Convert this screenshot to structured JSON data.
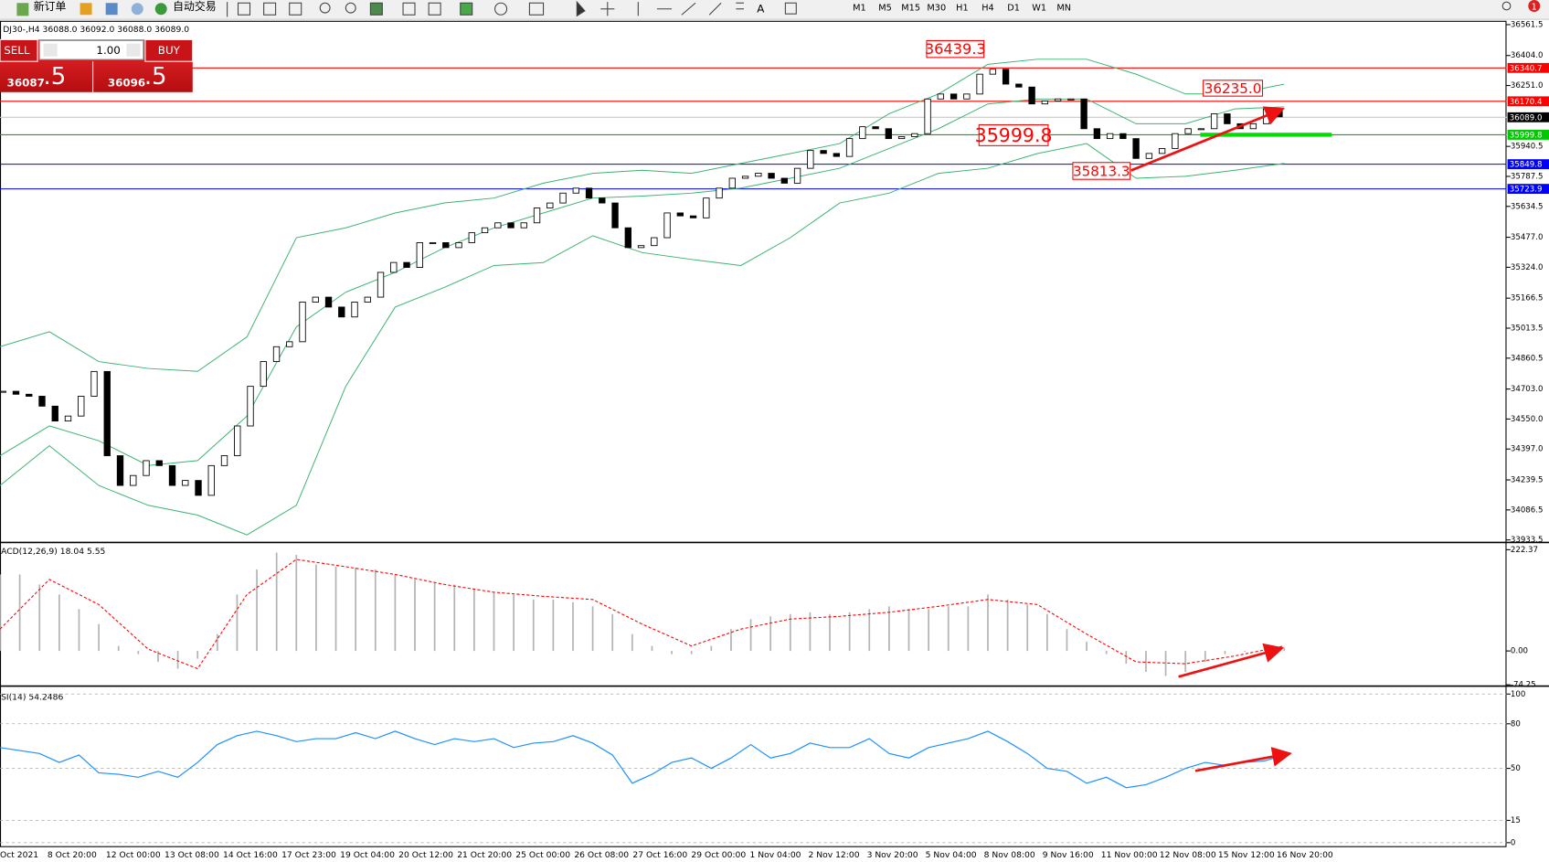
{
  "toolbar": {
    "new_order": "新订单",
    "auto_trading": "自动交易",
    "timeframes": [
      "M1",
      "M5",
      "M15",
      "M30",
      "H1",
      "H4",
      "D1",
      "W1",
      "MN"
    ],
    "badge": "1"
  },
  "trade_panel": {
    "sell_label": "SELL",
    "lot": "1.00",
    "buy_label": "BUY",
    "sell_price": {
      "main": "36087",
      "fraction": ".5"
    },
    "buy_price": {
      "main": "36096",
      "fraction": ".5"
    }
  },
  "time_axis": {
    "labels": [
      "Oct 2021",
      "8 Oct 20:00",
      "12 Oct 00:00",
      "13 Oct 08:00",
      "14 Oct 16:00",
      "17 Oct 23:00",
      "19 Oct 04:00",
      "20 Oct 12:00",
      "21 Oct 20:00",
      "25 Oct 00:00",
      "26 Oct 08:00",
      "27 Oct 16:00",
      "29 Oct 00:00",
      "1 Nov 04:00",
      "2 Nov 12:00",
      "3 Nov 20:00",
      "5 Nov 04:00",
      "8 Nov 08:00",
      "9 Nov 16:00",
      "11 Nov 00:00",
      "12 Nov 08:00",
      "15 Nov 12:00",
      "16 Nov 20:00"
    ]
  },
  "chart_data": [
    {
      "type": "candlestick",
      "title": "DJ30-,H4  36088.0 36092.0 36088.0 36089.0",
      "closes": [
        34691.5,
        34676.4,
        34666.2,
        34615.7,
        34539.9,
        34565.2,
        34666.2,
        34792.6,
        34363.0,
        34211.4,
        34261.9,
        34337.7,
        34312.5,
        34211.4,
        34236.7,
        34160.8,
        34312.5,
        34363.0,
        34514.6,
        34716.8,
        34843.1,
        34918.9,
        34944.2,
        35146.4,
        35171.6,
        35121.1,
        35070.6,
        35146.4,
        35171.6,
        35298.0,
        35348.5,
        35323.3,
        35449.6,
        35449.6,
        35424.3,
        35449.6,
        35500.2,
        35525.4,
        35550.7,
        35525.4,
        35550.7,
        35626.5,
        35651.8,
        35702.3,
        35727.6,
        35677.0,
        35651.8,
        35525.4,
        35424.3,
        35434.5,
        35474.9,
        35601.2,
        35586.1,
        35576.0,
        35677.0,
        35727.6,
        35778.1,
        35788.2,
        35803.4,
        35778.1,
        35752.9,
        35828.7,
        35919.6,
        35904.5,
        35889.3,
        35980.3,
        36040.9,
        36030.8,
        35980.3,
        35990.4,
        36005.6,
        36182.4,
        36207.7,
        36182.4,
        36207.7,
        36308.8,
        36334.1,
        36258.3,
        36243.1,
        36157.2,
        36172.3,
        36182.4,
        36182.4,
        36030.8,
        35980.3,
        36005.6,
        35980.3,
        35879.2,
        35904.5,
        35929.7,
        36005.6,
        36030.8,
        36030.8,
        36106.6,
        36056.1,
        36030.8,
        36056.1,
        36131.9,
        36091.5
      ],
      "bands": {
        "color": "#3cb371",
        "upper": [
          34919,
          34995,
          34843,
          34808,
          34793,
          34969,
          35475,
          35525,
          35601,
          35652,
          35677,
          35753,
          35803,
          35819,
          35803,
          35854,
          35904,
          35955,
          36107,
          36208,
          36359,
          36385,
          36385,
          36309,
          36208,
          36208,
          36258
        ],
        "middle": [
          34363,
          34515,
          34439,
          34313,
          34338,
          34565,
          35020,
          35197,
          35298,
          35424,
          35525,
          35601,
          35677,
          35687,
          35702,
          35728,
          35778,
          35829,
          35930,
          36031,
          36157,
          36182,
          36182,
          36056,
          36056,
          36132,
          36142
        ],
        "lower": [
          34211,
          34414,
          34211,
          34110,
          34060,
          33959,
          34110,
          34717,
          35121,
          35222,
          35333,
          35348,
          35485,
          35399,
          35364,
          35333,
          35475,
          35652,
          35702,
          35803,
          35829,
          35904,
          35955,
          35778,
          35788,
          35819,
          35854
        ]
      },
      "ylim": [
        33923,
        36576
      ],
      "yticks": [
        36561.5,
        {
          "value": 36404,
          "label": "36404.0"
        },
        {
          "value": 36251,
          "label": "36251.0"
        },
        35940.5,
        35787.5,
        35634.5,
        {
          "value": 35477,
          "label": "35477.0"
        },
        {
          "value": 35324,
          "label": "35324.0"
        },
        35166.5,
        35013.5,
        34860.5,
        {
          "value": 34703,
          "label": "34703.0"
        },
        {
          "value": 34550,
          "label": "34550.0"
        },
        {
          "value": 34397,
          "label": "34397.0"
        },
        34239.5,
        34086.5,
        33933.5
      ],
      "levels": {
        "values": [
          36340.7,
          36170.4,
          {
            "value": 36089,
            "label": "36089.0"
          },
          35999.8,
          35849.8,
          35723.9
        ],
        "line_colors": [
          "#ff0000",
          "#ff0000",
          "#c8c8c8",
          "#00b400",
          "#0000ff",
          "#0000ff"
        ],
        "label_colors": [
          "#ff0000",
          "#ff0000",
          "#000000",
          "#00c800",
          "#0000ff",
          "#0000ff"
        ]
      },
      "annotations": [
        "36439.3",
        "36235.0",
        "35999.8",
        "35813.3"
      ]
    },
    {
      "type": "macd",
      "title": "ACD(12,26,9) 18.04 5.55",
      "histogram": [
        168,
        168,
        146,
        124,
        92,
        59,
        11,
        -7,
        -24,
        -39,
        -17,
        37,
        124,
        179,
        216,
        211,
        190,
        185,
        183,
        179,
        168,
        157,
        150,
        146,
        135,
        129,
        124,
        113,
        113,
        107,
        98,
        81,
        37,
        11,
        -7,
        -7,
        11,
        48,
        70,
        76,
        81,
        85,
        81,
        85,
        92,
        98,
        92,
        92,
        98,
        98,
        124,
        113,
        102,
        81,
        48,
        20,
        -7,
        -28,
        -46,
        -55,
        -46,
        -24,
        -7,
        -2,
        4,
        7
      ],
      "signal": [
        48,
        157,
        102,
        4,
        -39,
        124,
        201,
        185,
        168,
        146,
        129,
        120,
        113,
        59,
        11,
        48,
        70,
        76,
        85,
        98,
        113,
        102,
        37,
        -24,
        -28,
        -11,
        11
      ],
      "histogram_color": "#b4b4b4",
      "signal_color": "#ff0000",
      "ylim": [
        -74,
        235
      ],
      "yticks": [
        222.37,
        {
          "value": 0,
          "label": "0.00"
        },
        -74.25
      ]
    },
    {
      "type": "line",
      "title": "SI(14) 54.2486",
      "values": [
        64,
        62,
        60,
        54,
        59,
        47,
        46,
        44,
        48,
        44,
        54,
        66,
        72,
        75,
        72,
        68,
        70,
        70,
        74,
        70,
        75,
        70,
        66,
        70,
        68,
        70,
        64,
        67,
        68,
        72,
        67,
        59,
        40,
        46,
        54,
        57,
        50,
        57,
        66,
        57,
        60,
        67,
        64,
        64,
        70,
        60,
        57,
        64,
        67,
        70,
        75,
        68,
        60,
        50,
        48,
        40,
        44,
        37,
        39,
        44,
        50,
        54,
        52,
        54,
        55,
        59
      ],
      "color": "#1e90ff",
      "ylim": [
        -3,
        103
      ],
      "yticks": [
        100,
        80,
        50,
        15,
        0
      ],
      "grid": true
    }
  ]
}
